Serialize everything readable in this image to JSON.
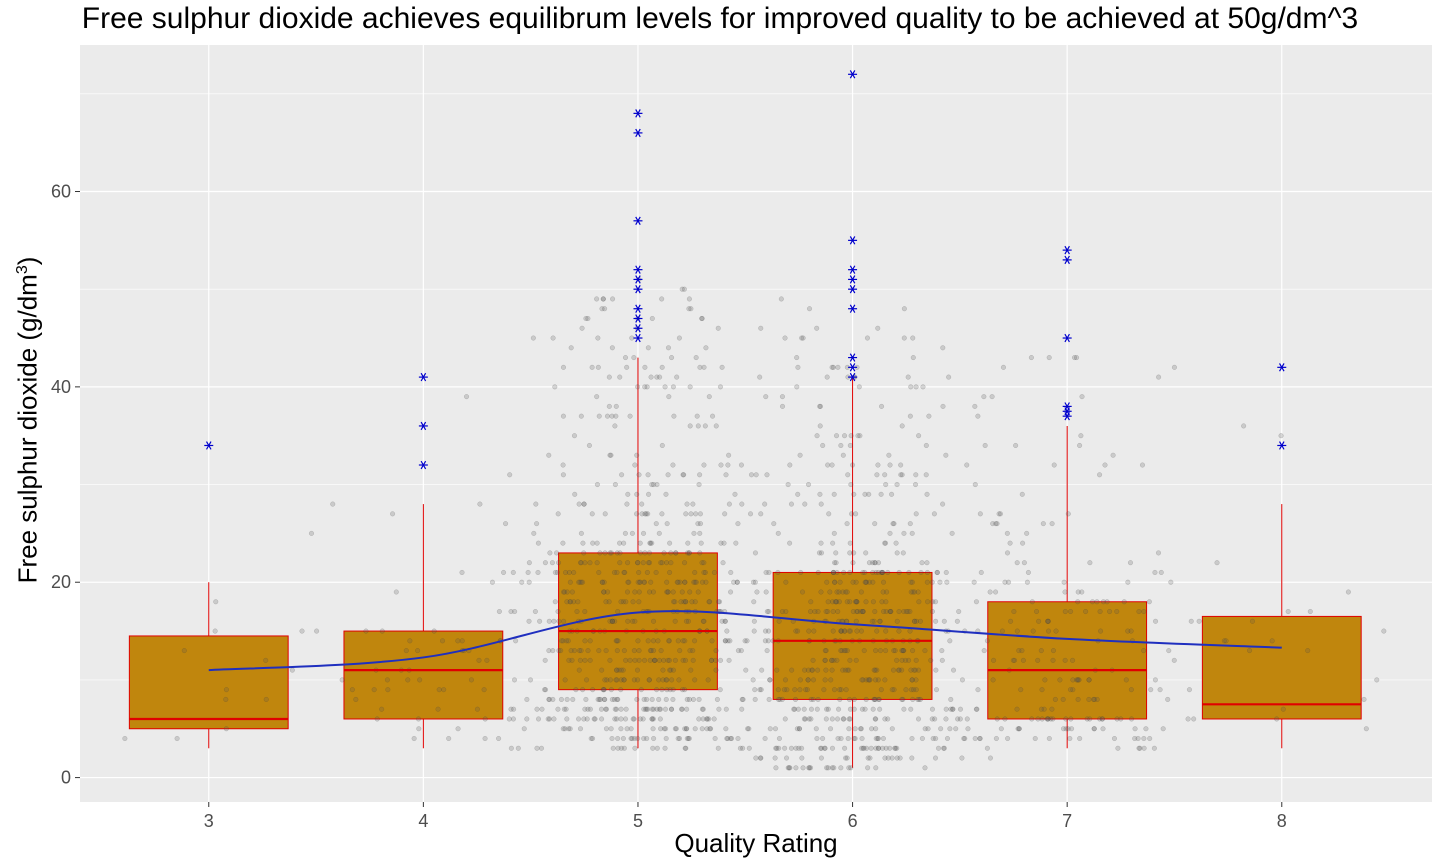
{
  "chart_data": {
    "type": "box",
    "title": "Free sulphur dioxide achieves equilibrum levels for improved quality to be achieved at 50g/dm^3",
    "xlabel": "Quality Rating",
    "ylabel_main": "Free sulphur dioxide (g/dm",
    "ylabel_sup": "3",
    "ylabel_end": ")",
    "categories": [
      3,
      4,
      5,
      6,
      7,
      8
    ],
    "xlim": [
      2.4,
      8.7
    ],
    "ylim": [
      -2.5,
      75
    ],
    "yticks": [
      0,
      20,
      40,
      60
    ],
    "grid": true,
    "box_fill": "#C0860D",
    "box_color": "#E00000",
    "mean_line_color": "#1F2FBF",
    "outlier_color": "#0000CC",
    "point_color": "#555555",
    "boxes": [
      {
        "x": 3,
        "q1": 5,
        "median": 6,
        "q3": 14.5,
        "lower": 3,
        "upper": 20,
        "outliers": [
          34
        ]
      },
      {
        "x": 4,
        "q1": 6,
        "median": 11,
        "q3": 15,
        "lower": 3,
        "upper": 28,
        "outliers": [
          32,
          36,
          41
        ]
      },
      {
        "x": 5,
        "q1": 9,
        "median": 15,
        "q3": 23,
        "lower": 3,
        "upper": 43,
        "outliers": [
          45,
          46,
          47,
          48,
          50,
          51,
          52,
          57,
          66,
          68
        ]
      },
      {
        "x": 6,
        "q1": 8,
        "median": 14,
        "q3": 21,
        "lower": 1,
        "upper": 41,
        "outliers": [
          41,
          42,
          43,
          48,
          50,
          51,
          52,
          55,
          72
        ]
      },
      {
        "x": 7,
        "q1": 6,
        "median": 11,
        "q3": 18,
        "lower": 3,
        "upper": 36,
        "outliers": [
          37,
          37.5,
          38,
          45,
          53,
          54
        ]
      },
      {
        "x": 8,
        "q1": 6,
        "median": 7.5,
        "q3": 16.5,
        "lower": 3,
        "upper": 28,
        "outliers": [
          34,
          42
        ]
      }
    ],
    "mean_trend": {
      "x": [
        3,
        4,
        5,
        6,
        7,
        8
      ],
      "y": [
        11,
        12.3,
        16.9,
        15.7,
        14.2,
        13.3
      ]
    },
    "jitter_counts": [
      10,
      53,
      681,
      638,
      199,
      18
    ]
  }
}
